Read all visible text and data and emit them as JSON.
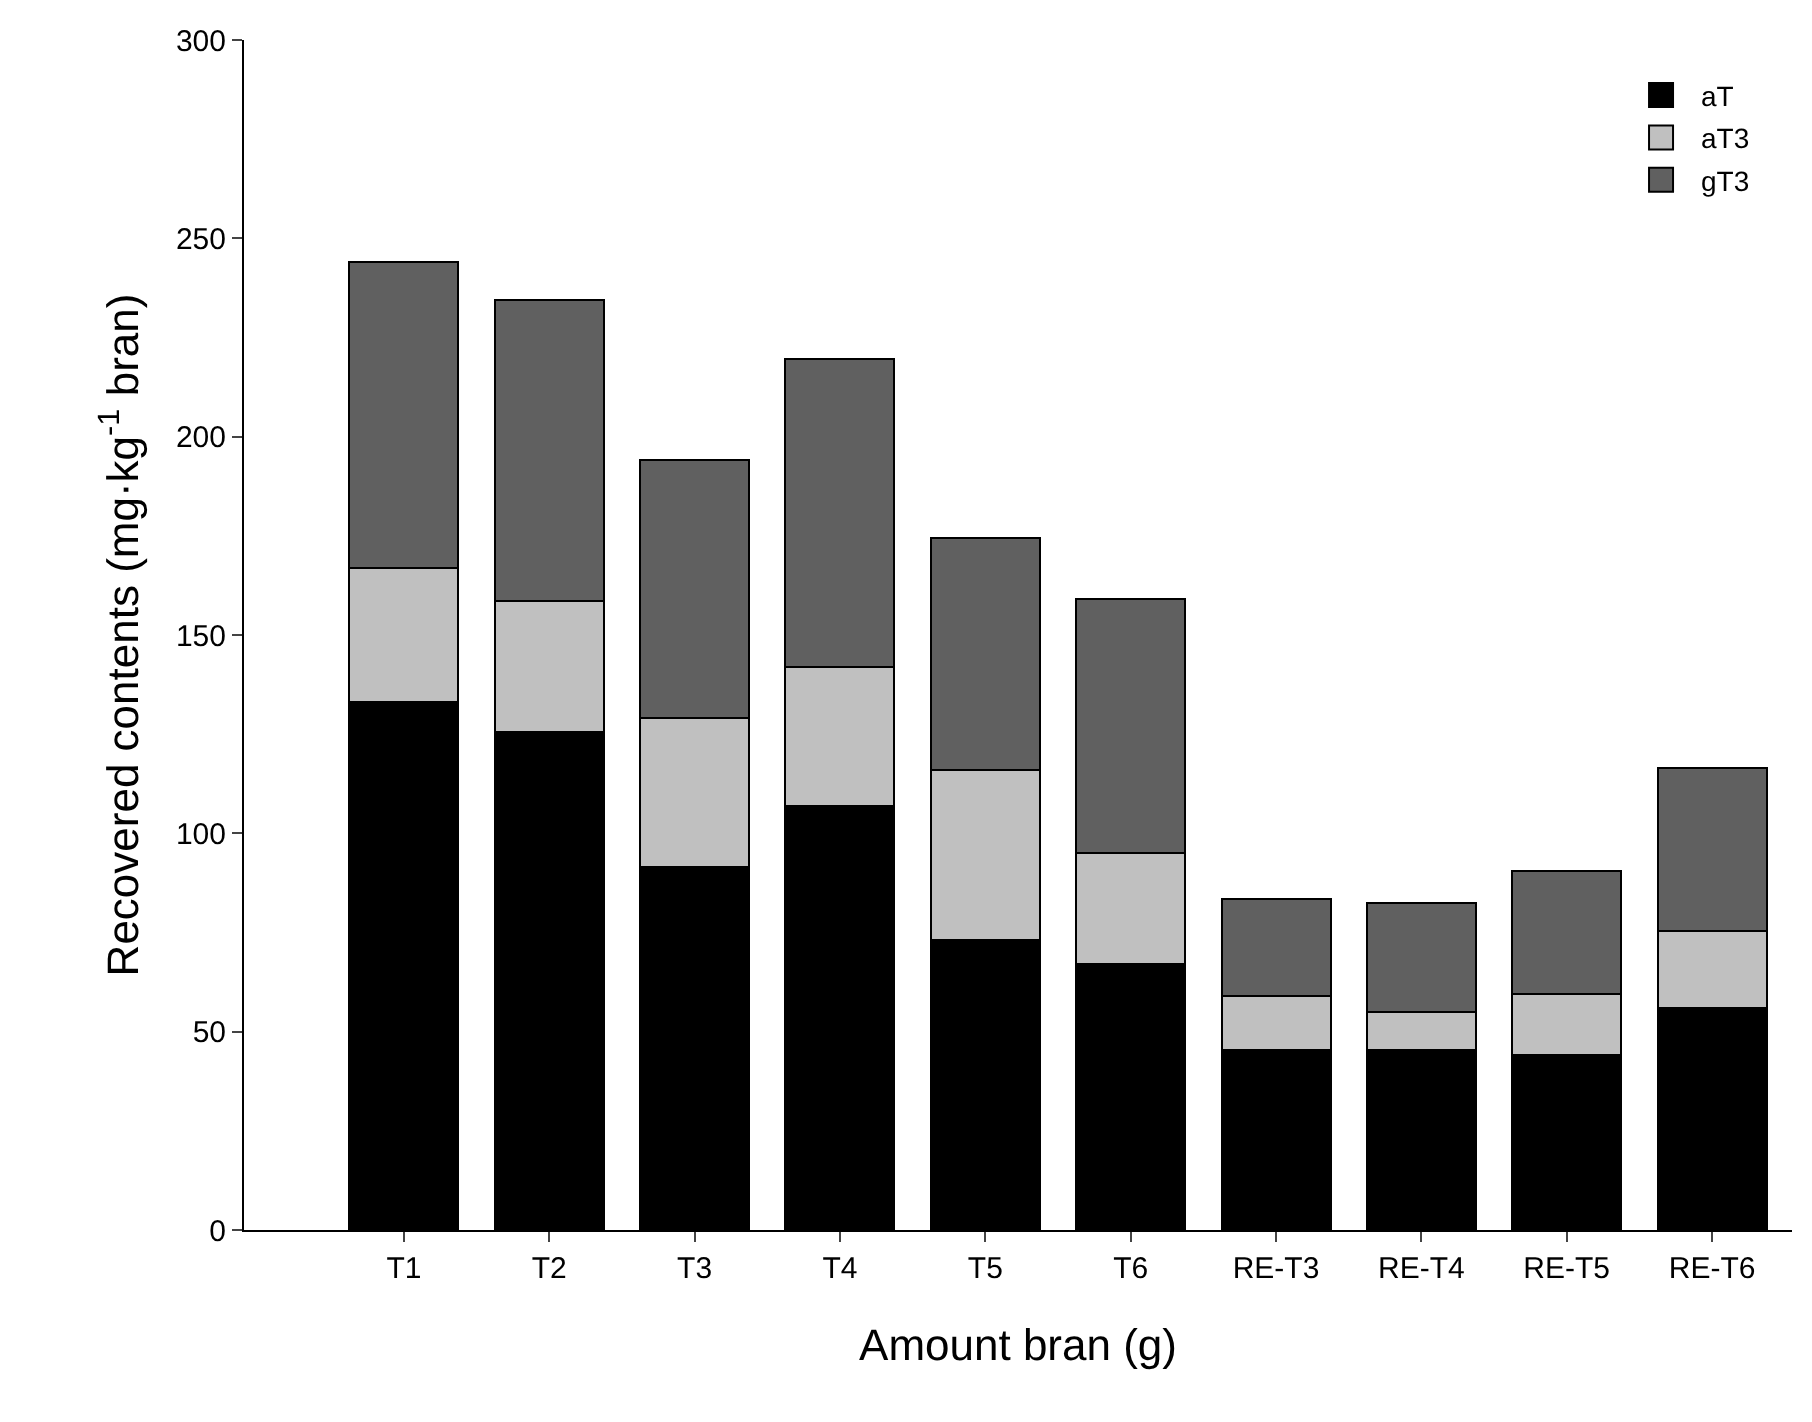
{
  "chart_data": {
    "type": "bar",
    "stacked": true,
    "xlabel": "Amount bran (g)",
    "ylabel": "Recovered contents (mg·kg$^{-1}$ bran)",
    "categories": [
      "T1",
      "T2",
      "T3",
      "T4",
      "T5",
      "T6",
      "RE-T3",
      "RE-T4",
      "RE-T5",
      "RE-T6"
    ],
    "series": [
      {
        "name": "aT",
        "color": "#000000",
        "values": [
          133,
          125.5,
          91.5,
          107,
          73,
          67,
          45.5,
          45.5,
          44,
          56
        ]
      },
      {
        "name": "aT3",
        "color": "#c0c0c0",
        "values": [
          34,
          33,
          37.5,
          35,
          43,
          28,
          13.5,
          9.5,
          15.5,
          19.5
        ]
      },
      {
        "name": "gT3",
        "color": "#606060",
        "values": [
          77,
          76,
          65,
          77.5,
          58.5,
          64,
          24.5,
          27.5,
          31,
          41
        ]
      }
    ],
    "ylim": [
      0,
      300
    ],
    "yticks": [
      0,
      50,
      100,
      150,
      200,
      250,
      300
    ],
    "grid": false,
    "legend": "top right"
  }
}
